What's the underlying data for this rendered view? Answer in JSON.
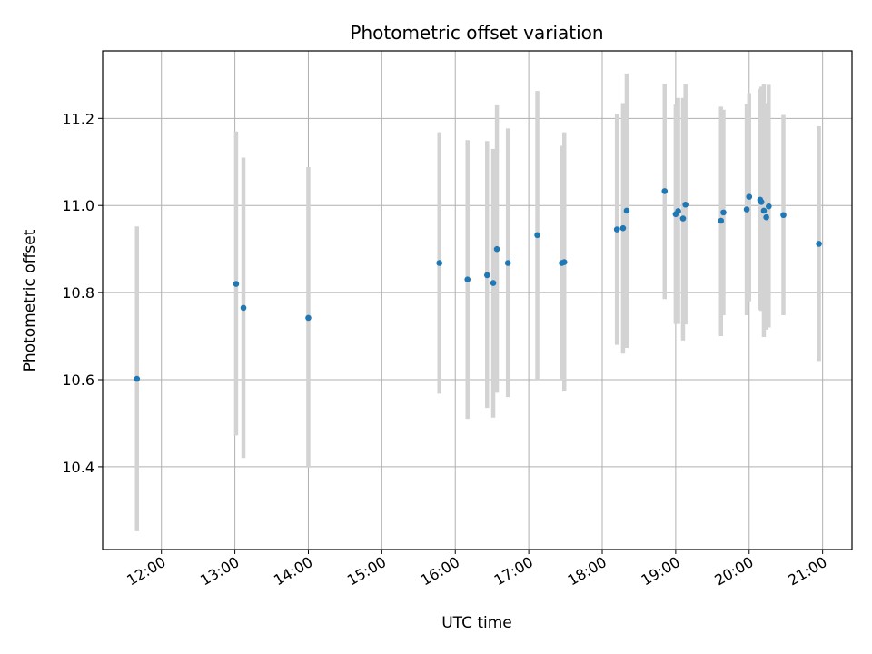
{
  "chart_data": {
    "type": "scatter",
    "title": "Photometric offset variation",
    "xlabel": "UTC time",
    "ylabel": "Photometric offset",
    "x_unit": "hours UTC",
    "xlim": [
      "11:12",
      "21:24"
    ],
    "ylim": [
      10.21,
      11.355
    ],
    "x_ticks": [
      "12:00",
      "13:00",
      "14:00",
      "15:00",
      "16:00",
      "17:00",
      "18:00",
      "19:00",
      "20:00",
      "21:00"
    ],
    "y_ticks": [
      "10.4",
      "10.6",
      "10.8",
      "11.0",
      "11.2"
    ],
    "grid": true,
    "errorbar_color": "#d3d3d3",
    "point_color": "#1f77b4",
    "points": [
      {
        "t": "11:40",
        "y": 10.602,
        "lo": 10.252,
        "hi": 10.952
      },
      {
        "t": "13:01",
        "y": 10.82,
        "lo": 10.472,
        "hi": 11.17
      },
      {
        "t": "13:07",
        "y": 10.765,
        "lo": 10.42,
        "hi": 11.11
      },
      {
        "t": "14:00",
        "y": 10.742,
        "lo": 10.398,
        "hi": 11.088
      },
      {
        "t": "15:47",
        "y": 10.868,
        "lo": 10.568,
        "hi": 11.168
      },
      {
        "t": "16:10",
        "y": 10.83,
        "lo": 10.51,
        "hi": 11.15
      },
      {
        "t": "16:26",
        "y": 10.84,
        "lo": 10.535,
        "hi": 11.148
      },
      {
        "t": "16:31",
        "y": 10.822,
        "lo": 10.513,
        "hi": 11.13
      },
      {
        "t": "16:34",
        "y": 10.9,
        "lo": 10.57,
        "hi": 11.23
      },
      {
        "t": "16:43",
        "y": 10.868,
        "lo": 10.56,
        "hi": 11.177
      },
      {
        "t": "17:07",
        "y": 10.932,
        "lo": 10.6,
        "hi": 11.263
      },
      {
        "t": "17:27",
        "y": 10.868,
        "lo": 10.6,
        "hi": 11.137
      },
      {
        "t": "17:29",
        "y": 10.87,
        "lo": 10.573,
        "hi": 11.168
      },
      {
        "t": "18:12",
        "y": 10.945,
        "lo": 10.68,
        "hi": 11.21
      },
      {
        "t": "18:17",
        "y": 10.948,
        "lo": 10.66,
        "hi": 11.235
      },
      {
        "t": "18:20",
        "y": 10.988,
        "lo": 10.673,
        "hi": 11.303
      },
      {
        "t": "18:51",
        "y": 11.033,
        "lo": 10.785,
        "hi": 11.28
      },
      {
        "t": "19:00",
        "y": 10.98,
        "lo": 10.728,
        "hi": 11.232
      },
      {
        "t": "19:02",
        "y": 10.987,
        "lo": 10.728,
        "hi": 11.247
      },
      {
        "t": "19:06",
        "y": 10.97,
        "lo": 10.69,
        "hi": 11.247
      },
      {
        "t": "19:08",
        "y": 11.002,
        "lo": 10.727,
        "hi": 11.278
      },
      {
        "t": "19:37",
        "y": 10.965,
        "lo": 10.7,
        "hi": 11.227
      },
      {
        "t": "19:39",
        "y": 10.984,
        "lo": 10.748,
        "hi": 11.22
      },
      {
        "t": "19:58",
        "y": 10.991,
        "lo": 10.748,
        "hi": 11.233
      },
      {
        "t": "20:00",
        "y": 11.02,
        "lo": 10.78,
        "hi": 11.258
      },
      {
        "t": "20:09",
        "y": 11.013,
        "lo": 10.76,
        "hi": 11.268
      },
      {
        "t": "20:10",
        "y": 11.008,
        "lo": 10.758,
        "hi": 11.273
      },
      {
        "t": "20:12",
        "y": 10.988,
        "lo": 10.698,
        "hi": 11.278
      },
      {
        "t": "20:14",
        "y": 10.973,
        "lo": 10.715,
        "hi": 11.235
      },
      {
        "t": "20:16",
        "y": 10.998,
        "lo": 10.72,
        "hi": 11.277
      },
      {
        "t": "20:28",
        "y": 10.978,
        "lo": 10.748,
        "hi": 11.208
      },
      {
        "t": "20:57",
        "y": 10.912,
        "lo": 10.643,
        "hi": 11.182
      }
    ]
  }
}
